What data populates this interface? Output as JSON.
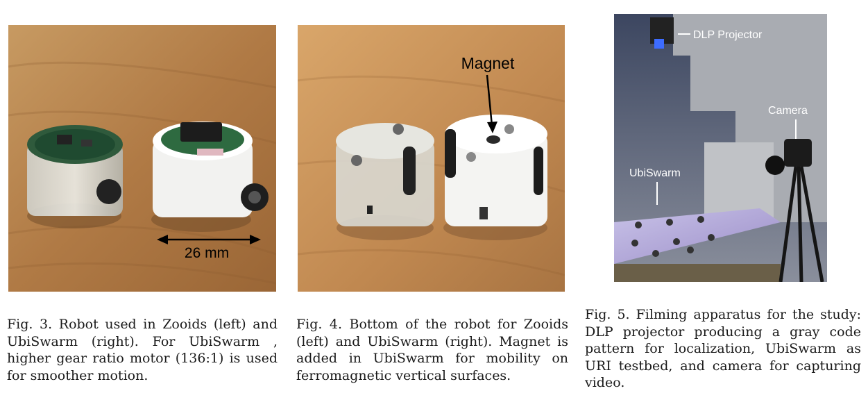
{
  "figures": [
    {
      "id": "fig3",
      "photo_label": "26 mm",
      "caption": "Fig. 3. Robot used in Zooids (left) and UbiSwarm (right). For UbiSwarm , higher gear ratio motor (136:1) is used for smoother motion."
    },
    {
      "id": "fig4",
      "photo_label": "Magnet",
      "caption": "Fig. 4. Bottom of the robot for Zooids (left) and UbiSwarm (right). Magnet is added in UbiSwarm for mobility on ferromagnetic vertical surfaces."
    },
    {
      "id": "fig5",
      "photo_labels": {
        "projector": "DLP Projector",
        "camera": "Camera",
        "swarm": "UbiSwarm"
      },
      "caption": "Fig. 5. Filming apparatus for the study: DLP projector producing a gray code pattern for localization, UbiSwarm as URI testbed, and camera for capturing video."
    }
  ]
}
